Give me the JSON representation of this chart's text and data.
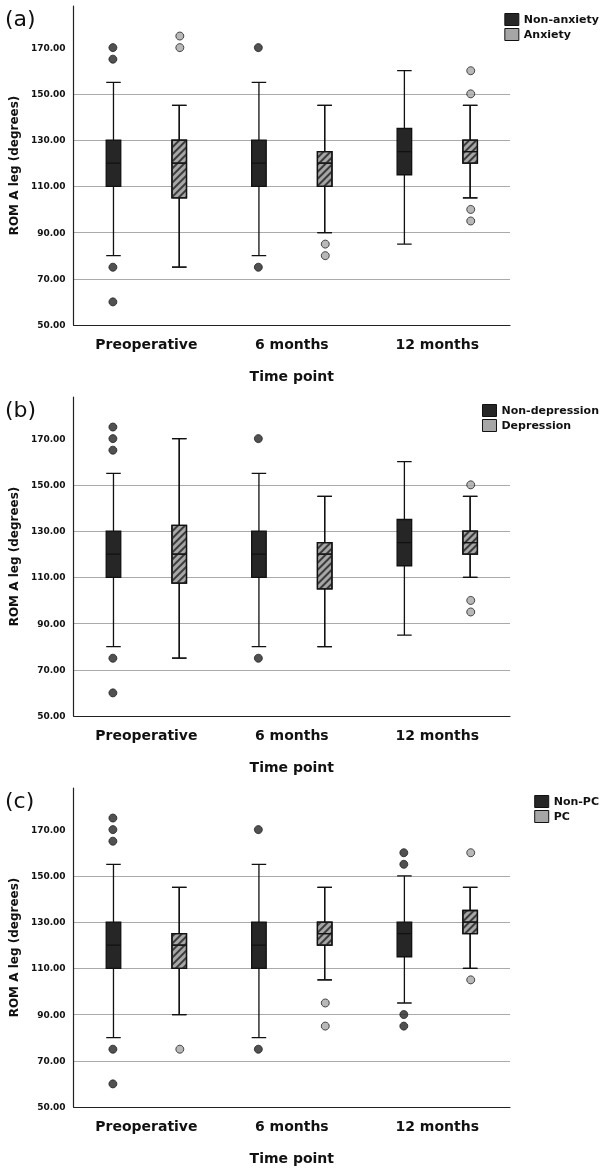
{
  "chart_data": [
    {
      "type": "box",
      "title": "(a)",
      "xlabel": "Time point",
      "ylabel": "ROM A leg (degrees)",
      "categories": [
        "Preoperative",
        "6 months",
        "12 months"
      ],
      "ylim": [
        50,
        188
      ],
      "yticks": [
        {
          "value": 50,
          "label": "50.00"
        },
        {
          "value": 70,
          "label": "70.00"
        },
        {
          "value": 90,
          "label": "90.00"
        },
        {
          "value": 110,
          "label": "110.00"
        },
        {
          "value": 130,
          "label": "130.00"
        },
        {
          "value": 150,
          "label": "150.00"
        },
        {
          "value": 170,
          "label": "170.00"
        }
      ],
      "grid": "y",
      "legend": "top right",
      "marker": "circle",
      "series": [
        {
          "name": "Non-anxiety",
          "color": "#262626",
          "boxes": [
            {
              "low": 80,
              "q1": 110,
              "median": 120,
              "q3": 130,
              "high": 155,
              "outliers": [
                170,
                165,
                75,
                60
              ]
            },
            {
              "low": 80,
              "q1": 110,
              "median": 120,
              "q3": 130,
              "high": 155,
              "outliers": [
                170,
                75
              ]
            },
            {
              "low": 85,
              "q1": 115,
              "median": 125,
              "q3": 135,
              "high": 160
            }
          ]
        },
        {
          "name": "Anxiety",
          "color": "#a6a6a6",
          "boxes": [
            {
              "low": 75,
              "q1": 105,
              "median": 120,
              "q3": 130,
              "high": 145,
              "outliers": [
                175,
                170
              ]
            },
            {
              "low": 90,
              "q1": 110,
              "median": 120,
              "q3": 125,
              "high": 145,
              "outliers": [
                85,
                80
              ]
            },
            {
              "low": 105,
              "q1": 120,
              "median": 125,
              "q3": 130,
              "high": 145,
              "outliers": [
                160,
                150,
                100,
                95
              ]
            }
          ]
        }
      ]
    },
    {
      "type": "box",
      "title": "(b)",
      "xlabel": "Time point",
      "ylabel": "ROM A leg (degrees)",
      "categories": [
        "Preoperative",
        "6 months",
        "12 months"
      ],
      "ylim": [
        50,
        188
      ],
      "yticks": [
        {
          "value": 50,
          "label": "50.00"
        },
        {
          "value": 70,
          "label": "70.00"
        },
        {
          "value": 90,
          "label": "90.00"
        },
        {
          "value": 110,
          "label": "110.00"
        },
        {
          "value": 130,
          "label": "130.00"
        },
        {
          "value": 150,
          "label": "150.00"
        },
        {
          "value": 170,
          "label": "170.00"
        }
      ],
      "grid": "y",
      "legend": "top right",
      "marker": "circle",
      "series": [
        {
          "name": "Non-depression",
          "color": "#262626",
          "boxes": [
            {
              "low": 80,
              "q1": 110,
              "median": 120,
              "q3": 130,
              "high": 155,
              "outliers": [
                175,
                170,
                165,
                75,
                60
              ]
            },
            {
              "low": 80,
              "q1": 110,
              "median": 120,
              "q3": 130,
              "high": 155,
              "outliers": [
                170,
                75
              ]
            },
            {
              "low": 85,
              "q1": 115,
              "median": 125,
              "q3": 135,
              "high": 160
            }
          ]
        },
        {
          "name": "Depression",
          "color": "#a6a6a6",
          "boxes": [
            {
              "low": 75,
              "q1": 107.5,
              "median": 120,
              "q3": 132.5,
              "high": 170
            },
            {
              "low": 80,
              "q1": 105,
              "median": 120,
              "q3": 125,
              "high": 145
            },
            {
              "low": 110,
              "q1": 120,
              "median": 125,
              "q3": 130,
              "high": 145,
              "outliers": [
                150,
                100,
                95
              ]
            }
          ]
        }
      ]
    },
    {
      "type": "box",
      "title": "(c)",
      "xlabel": "Time point",
      "ylabel": "ROM A leg (degrees)",
      "categories": [
        "Preoperative",
        "6 months",
        "12 months"
      ],
      "ylim": [
        50,
        188
      ],
      "yticks": [
        {
          "value": 50,
          "label": "50.00"
        },
        {
          "value": 70,
          "label": "70.00"
        },
        {
          "value": 90,
          "label": "90.00"
        },
        {
          "value": 110,
          "label": "110.00"
        },
        {
          "value": 130,
          "label": "130.00"
        },
        {
          "value": 150,
          "label": "150.00"
        },
        {
          "value": 170,
          "label": "170.00"
        }
      ],
      "grid": "y",
      "legend": "top right",
      "marker": "circle",
      "series": [
        {
          "name": "Non-PC",
          "color": "#262626",
          "boxes": [
            {
              "low": 80,
              "q1": 110,
              "median": 120,
              "q3": 130,
              "high": 155,
              "outliers": [
                175,
                170,
                165,
                75,
                60
              ]
            },
            {
              "low": 80,
              "q1": 110,
              "median": 120,
              "q3": 130,
              "high": 155,
              "outliers": [
                170,
                75
              ]
            },
            {
              "low": 95,
              "q1": 115,
              "median": 125,
              "q3": 130,
              "high": 150,
              "outliers": [
                160,
                155,
                90,
                85
              ]
            }
          ]
        },
        {
          "name": "PC",
          "color": "#a6a6a6",
          "boxes": [
            {
              "low": 90,
              "q1": 110,
              "median": 120,
              "q3": 125,
              "high": 145,
              "outliers": [
                75
              ]
            },
            {
              "low": 105,
              "q1": 120,
              "median": 125,
              "q3": 130,
              "high": 145,
              "outliers": [
                95,
                85
              ]
            },
            {
              "low": 110,
              "q1": 125,
              "median": 130,
              "q3": 135,
              "high": 145,
              "outliers": [
                160,
                105
              ]
            }
          ]
        }
      ]
    }
  ]
}
